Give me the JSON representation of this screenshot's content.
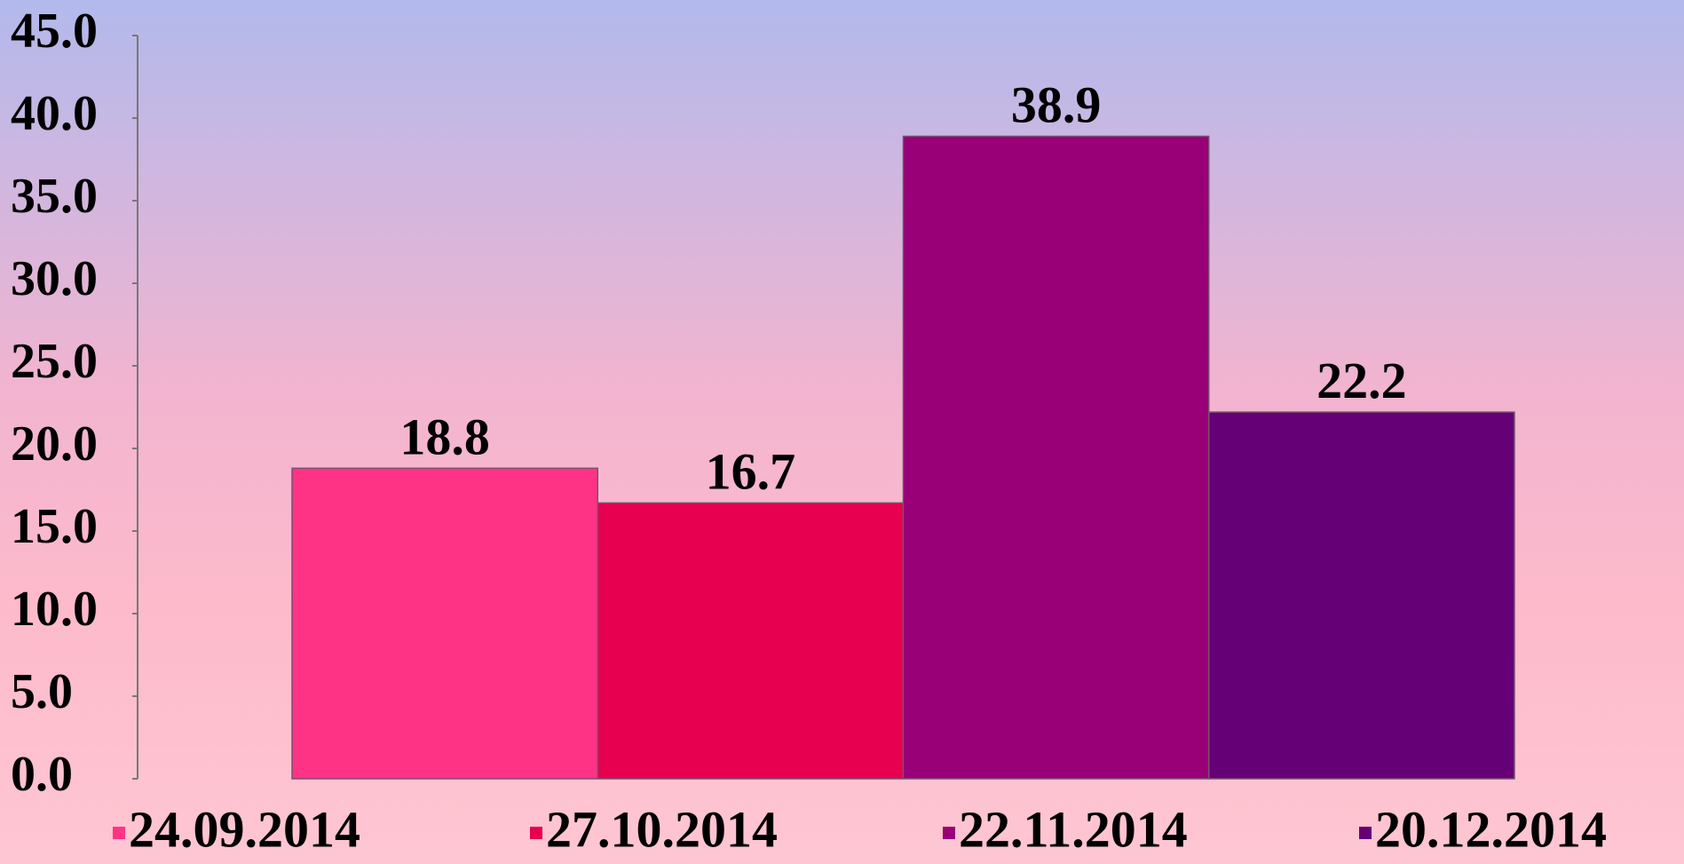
{
  "chart_data": {
    "type": "bar",
    "categories": [
      null
    ],
    "series": [
      {
        "name": "24.09.2014",
        "color": "#ff3385",
        "values": [
          18.8
        ]
      },
      {
        "name": "27.10.2014",
        "color": "#e6004f",
        "values": [
          16.7
        ]
      },
      {
        "name": "22.11.2014",
        "color": "#990078",
        "values": [
          38.9
        ]
      },
      {
        "name": "20.12.2014",
        "color": "#660077",
        "values": [
          22.2
        ]
      }
    ],
    "ylim": [
      0,
      45
    ],
    "yticks": [
      {
        "value": 0,
        "label": "0.0"
      },
      {
        "value": 5,
        "label": "5.0"
      },
      {
        "value": 10,
        "label": "10.0"
      },
      {
        "value": 15,
        "label": "15.0"
      },
      {
        "value": 20,
        "label": "20.0"
      },
      {
        "value": 25,
        "label": "25.0"
      },
      {
        "value": 30,
        "label": "30.0"
      },
      {
        "value": 35,
        "label": "35.0"
      },
      {
        "value": 40,
        "label": "40.0"
      },
      {
        "value": 45,
        "label": "45.0"
      }
    ],
    "grid": false,
    "legend": "bottom"
  }
}
